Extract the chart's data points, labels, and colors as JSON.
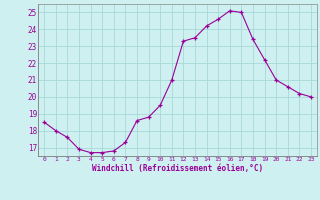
{
  "x": [
    0,
    1,
    2,
    3,
    4,
    5,
    6,
    7,
    8,
    9,
    10,
    11,
    12,
    13,
    14,
    15,
    16,
    17,
    18,
    19,
    20,
    21,
    22,
    23
  ],
  "y": [
    18.5,
    18.0,
    17.6,
    16.9,
    16.7,
    16.7,
    16.8,
    17.3,
    18.6,
    18.8,
    19.5,
    21.0,
    23.3,
    23.5,
    24.2,
    24.6,
    25.1,
    25.0,
    23.4,
    22.2,
    21.0,
    20.6,
    20.2,
    20.0
  ],
  "bg_color": "#cff0f0",
  "line_color": "#990099",
  "marker_color": "#990099",
  "grid_color": "#a8d8d8",
  "axis_label_color": "#990099",
  "xlabel": "Windchill (Refroidissement éolien,°C)",
  "ylim": [
    16.5,
    25.5
  ],
  "xlim": [
    -0.5,
    23.5
  ],
  "yticks": [
    17,
    18,
    19,
    20,
    21,
    22,
    23,
    24,
    25
  ],
  "xticks": [
    0,
    1,
    2,
    3,
    4,
    5,
    6,
    7,
    8,
    9,
    10,
    11,
    12,
    13,
    14,
    15,
    16,
    17,
    18,
    19,
    20,
    21,
    22,
    23
  ],
  "line_width": 0.8,
  "marker_size": 3.5
}
